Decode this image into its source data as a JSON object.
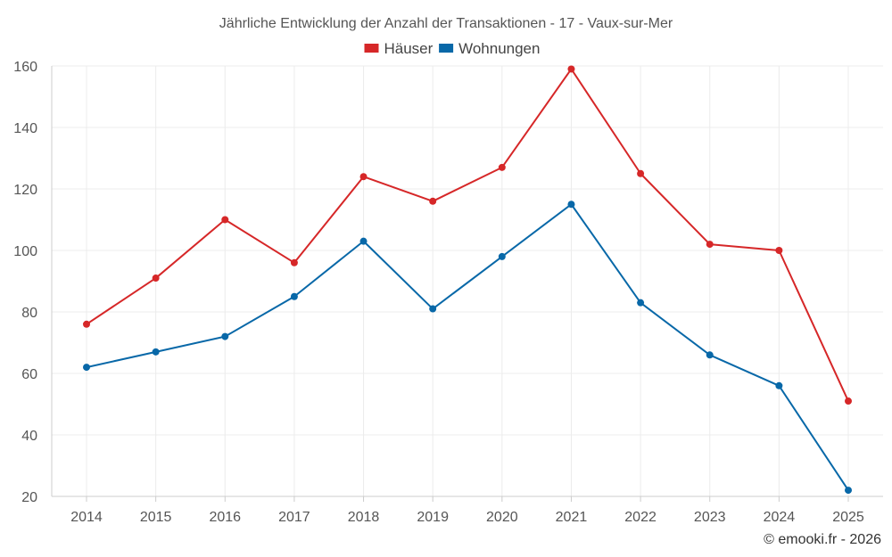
{
  "chart_data": {
    "type": "line",
    "title": "Jährliche Entwicklung der Anzahl der Transaktionen - 17 - Vaux-sur-Mer",
    "categories": [
      "2014",
      "2015",
      "2016",
      "2017",
      "2018",
      "2019",
      "2020",
      "2021",
      "2022",
      "2023",
      "2024",
      "2025"
    ],
    "series": [
      {
        "name": "Häuser",
        "color": "#d62728",
        "values": [
          76,
          91,
          110,
          96,
          124,
          116,
          127,
          159,
          125,
          102,
          100,
          51
        ]
      },
      {
        "name": "Wohnungen",
        "color": "#0868a8",
        "values": [
          62,
          67,
          72,
          85,
          103,
          81,
          98,
          115,
          83,
          66,
          56,
          22
        ]
      }
    ],
    "ylim": [
      20,
      160
    ],
    "yticks": [
      20,
      40,
      60,
      80,
      100,
      120,
      140,
      160
    ],
    "xlabel": "",
    "ylabel": "",
    "legend_position": "top-center",
    "grid": true
  },
  "credit": "© emooki.fr - 2026"
}
